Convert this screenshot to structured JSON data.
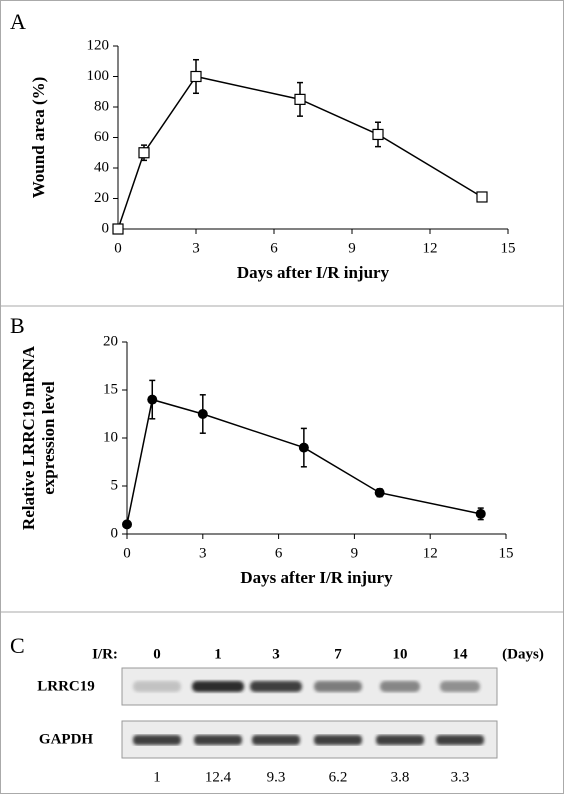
{
  "chart_data": [
    {
      "type": "line",
      "panel": "A",
      "ylabel": [
        "Wound area (%)"
      ],
      "xlabel": "Days after I/R injury",
      "x": [
        0,
        1,
        3,
        7,
        10,
        14
      ],
      "values": [
        0,
        50,
        100,
        85,
        62,
        21
      ],
      "errors": [
        0,
        5,
        11,
        11,
        8,
        2
      ],
      "marker": "open-square",
      "color": "#000000",
      "xlim": [
        0,
        15
      ],
      "xticks": [
        0,
        3,
        6,
        9,
        12,
        15
      ],
      "ylim": [
        0,
        120
      ],
      "yticks": [
        0,
        20,
        40,
        60,
        80,
        100,
        120
      ]
    },
    {
      "type": "line",
      "panel": "B",
      "ylabel": [
        "Relative LRRC19 mRNA",
        "expression level"
      ],
      "xlabel": "Days after I/R injury",
      "x": [
        0,
        1,
        3,
        7,
        10,
        14
      ],
      "values": [
        1,
        14,
        12.5,
        9,
        4.3,
        2.1
      ],
      "errors": [
        0,
        2,
        2,
        2,
        0.4,
        0.6
      ],
      "marker": "filled-circle",
      "color": "#000000",
      "xlim": [
        0,
        15
      ],
      "xticks": [
        0,
        3,
        6,
        9,
        12,
        15
      ],
      "ylim": [
        0,
        20
      ],
      "yticks": [
        0,
        5,
        10,
        15,
        20
      ]
    }
  ],
  "blot": {
    "panel": "C",
    "row_header": "I/R:",
    "lanes": [
      "0",
      "1",
      "3",
      "7",
      "10",
      "14"
    ],
    "unit": "(Days)",
    "rows": [
      "LRRC19",
      "GAPDH"
    ],
    "quantification": [
      "1",
      "12.4",
      "9.3",
      "6.2",
      "3.8",
      "3.3"
    ]
  }
}
